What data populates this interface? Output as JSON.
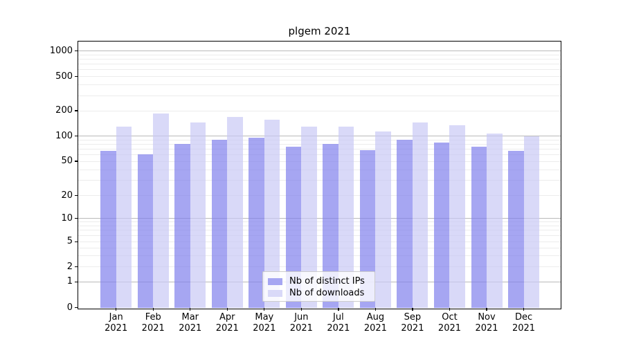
{
  "chart_data": {
    "type": "bar",
    "title": "plgem 2021",
    "year": "2021",
    "months": [
      "Jan",
      "Feb",
      "Mar",
      "Apr",
      "May",
      "Jun",
      "Jul",
      "Aug",
      "Sep",
      "Oct",
      "Nov",
      "Dec"
    ],
    "categories": [
      "Jan 2021",
      "Feb 2021",
      "Mar 2021",
      "Apr 2021",
      "May 2021",
      "Jun 2021",
      "Jul 2021",
      "Aug 2021",
      "Sep 2021",
      "Oct 2021",
      "Nov 2021",
      "Dec 2021"
    ],
    "series": [
      {
        "name": "Nb of distinct IPs",
        "color": "#a6a6f2",
        "values": [
          66,
          61,
          81,
          91,
          96,
          74,
          81,
          68,
          91,
          84,
          74,
          66
        ]
      },
      {
        "name": "Nb of downloads",
        "color": "#d9d9f8",
        "values": [
          129,
          186,
          144,
          169,
          155,
          130,
          130,
          114,
          144,
          135,
          108,
          100
        ]
      }
    ],
    "yscale": "symlog",
    "y_ticks": [
      1000,
      500,
      200,
      100,
      50,
      20,
      10,
      5,
      2,
      1,
      0
    ],
    "ylim": [
      0,
      1400
    ],
    "grid": true,
    "legend_position": "lower center"
  },
  "colors": {
    "bar_dark_rgba": "rgba(128,128,236,0.7)",
    "bar_light_rgba": "rgba(201,201,245,0.7)",
    "grid_major": "#b9b9b9",
    "grid_minor": "#ececec"
  }
}
